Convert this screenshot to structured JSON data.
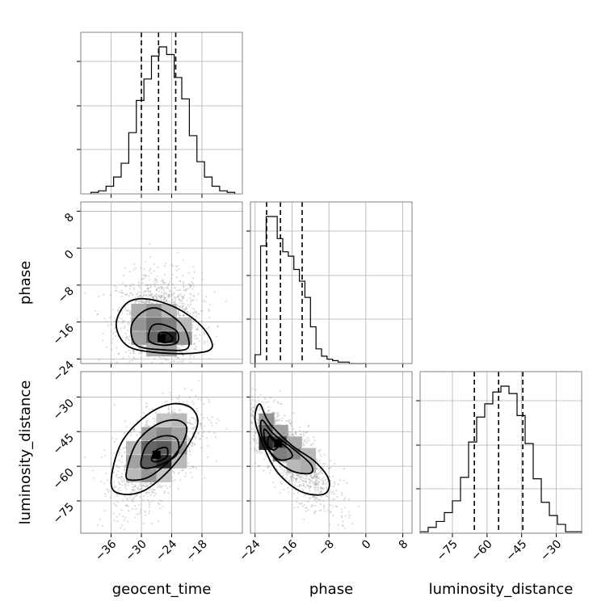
{
  "chart_data": {
    "type": "corner",
    "parameters": [
      "geocent_time",
      "phase",
      "luminosity_distance"
    ],
    "axis_titles": {
      "x": [
        "geocent_time",
        "phase",
        "luminosity_distance"
      ],
      "y": [
        "",
        "phase",
        "luminosity_distance"
      ]
    },
    "ranges": {
      "geocent_time": [
        -42,
        -10
      ],
      "phase": [
        -25,
        10
      ],
      "luminosity_distance": [
        -89,
        -19
      ]
    },
    "ticks": {
      "geocent_time": [
        -36,
        -30,
        -24,
        -18
      ],
      "phase": [
        -24,
        -16,
        -8,
        0,
        8
      ],
      "luminosity_distance": [
        -75,
        -60,
        -45,
        -30
      ]
    },
    "tick_labels": {
      "geocent_time": [
        "−36",
        "−30",
        "−24",
        "−18"
      ],
      "phase": [
        "−24",
        "−16",
        "−8",
        "0",
        "8"
      ],
      "luminosity_distance": [
        "−75",
        "−60",
        "−45",
        "−30"
      ]
    },
    "quantiles_dashed": {
      "geocent_time": [
        -30.0,
        -26.6,
        -23.2
      ],
      "phase": [
        -21.5,
        -18.5,
        -13.8
      ],
      "luminosity_distance": [
        -65.5,
        -55.0,
        -44.5
      ]
    },
    "histograms": {
      "geocent_time": {
        "bin_edges": [
          -40.0,
          -38.5,
          -37.0,
          -35.5,
          -34.0,
          -32.5,
          -31.0,
          -29.5,
          -28.0,
          -26.5,
          -25.0,
          -23.5,
          -22.0,
          -20.5,
          -19.0,
          -17.5,
          -16.0,
          -14.5,
          -13.0,
          -11.5
        ],
        "counts": [
          1,
          2,
          5,
          11,
          20,
          40,
          61,
          75,
          90,
          96,
          91,
          76,
          62,
          38,
          21,
          11,
          5,
          2,
          1
        ]
      },
      "phase": {
        "bin_edges": [
          -24.0,
          -22.8,
          -21.6,
          -20.4,
          -19.2,
          -18.0,
          -16.8,
          -15.6,
          -14.4,
          -13.2,
          -12.0,
          -10.8,
          -9.6,
          -8.4,
          -7.2,
          -6.0,
          -4.8,
          -3.6,
          -2.4,
          -1.2,
          0.0
        ],
        "counts": [
          6,
          80,
          100,
          100,
          85,
          76,
          73,
          64,
          56,
          45,
          25,
          10,
          5,
          3,
          2,
          1,
          1,
          0,
          0,
          0
        ]
      },
      "luminosity_distance": {
        "bin_edges": [
          -89.0,
          -85.5,
          -82.0,
          -78.5,
          -75.0,
          -71.5,
          -68.0,
          -64.5,
          -61.0,
          -57.5,
          -54.0,
          -50.5,
          -47.0,
          -43.5,
          -40.0,
          -36.5,
          -33.0,
          -29.5,
          -26.0,
          -22.5,
          -19.0
        ],
        "counts": [
          1,
          4,
          8,
          14,
          22,
          38,
          62,
          79,
          88,
          96,
          100,
          95,
          80,
          61,
          37,
          21,
          12,
          6,
          1,
          1
        ]
      }
    },
    "contours": {
      "phase_vs_geocent_time": {
        "center": [
          -26,
          -19.5
        ],
        "levels": [
          [
            [
              -33,
              -12
            ],
            [
              -29,
              -11
            ],
            [
              -23,
              -13
            ],
            [
              -18,
              -17
            ],
            [
              -16,
              -21.5
            ],
            [
              -20,
              -22.8
            ],
            [
              -28,
              -22.5
            ],
            [
              -33,
              -21
            ],
            [
              -35,
              -16.5
            ]
          ],
          [
            [
              -30,
              -14
            ],
            [
              -27,
              -13
            ],
            [
              -23,
              -15.5
            ],
            [
              -21,
              -18.5
            ],
            [
              -21,
              -21.8
            ],
            [
              -26,
              -22
            ],
            [
              -31,
              -21
            ],
            [
              -32,
              -17
            ]
          ],
          [
            [
              -28,
              -17
            ],
            [
              -26,
              -16.5
            ],
            [
              -23,
              -18
            ],
            [
              -23,
              -20.5
            ],
            [
              -26,
              -21
            ],
            [
              -28.5,
              -20
            ]
          ],
          [
            [
              -26.5,
              -18.5
            ],
            [
              -25,
              -18.3
            ],
            [
              -23.8,
              -19.5
            ],
            [
              -24.5,
              -20.3
            ],
            [
              -26,
              -20.3
            ]
          ]
        ],
        "density_cells": [
          {
            "x": -30.5,
            "y": -13.5,
            "w": 0.35
          },
          {
            "x": -27.5,
            "y": -13.5,
            "w": 0.45
          },
          {
            "x": -24.5,
            "y": -13.5,
            "w": 0.3
          },
          {
            "x": -30.5,
            "y": -16.5,
            "w": 0.45
          },
          {
            "x": -27.5,
            "y": -16.5,
            "w": 0.6
          },
          {
            "x": -24.5,
            "y": -16.5,
            "w": 0.55
          },
          {
            "x": -21.5,
            "y": -16.5,
            "w": 0.3
          },
          {
            "x": -30.5,
            "y": -19.5,
            "w": 0.4
          },
          {
            "x": -27.5,
            "y": -19.5,
            "w": 0.65
          },
          {
            "x": -24.5,
            "y": -19.5,
            "w": 0.95
          },
          {
            "x": -21.5,
            "y": -19.5,
            "w": 0.45
          },
          {
            "x": -27.5,
            "y": -22,
            "w": 0.35
          },
          {
            "x": -24.5,
            "y": -22,
            "w": 0.4
          }
        ]
      },
      "luminosity_distance_vs_geocent_time": {
        "center": [
          -27,
          -55
        ],
        "levels": [
          [
            [
              -36,
              -67
            ],
            [
              -34,
              -50
            ],
            [
              -29,
              -38
            ],
            [
              -24,
              -33
            ],
            [
              -20,
              -35
            ],
            [
              -19,
              -43
            ],
            [
              -23,
              -58
            ],
            [
              -29,
              -70
            ],
            [
              -34,
              -72
            ]
          ],
          [
            [
              -33,
              -63
            ],
            [
              -31,
              -50
            ],
            [
              -27,
              -42
            ],
            [
              -23,
              -40
            ],
            [
              -21,
              -44
            ],
            [
              -23,
              -54
            ],
            [
              -28,
              -64
            ],
            [
              -32,
              -66
            ]
          ],
          [
            [
              -30,
              -60
            ],
            [
              -29,
              -51
            ],
            [
              -26,
              -47
            ],
            [
              -23,
              -48
            ],
            [
              -23,
              -55
            ],
            [
              -27,
              -60
            ]
          ],
          [
            [
              -28,
              -57
            ],
            [
              -27,
              -53
            ],
            [
              -25,
              -52
            ],
            [
              -25,
              -56
            ],
            [
              -27,
              -58
            ]
          ]
        ],
        "density_cells": [
          {
            "x": -31.5,
            "y": -64,
            "w": 0.3
          },
          {
            "x": -28.5,
            "y": -64,
            "w": 0.45
          },
          {
            "x": -25.5,
            "y": -64,
            "w": 0.25
          },
          {
            "x": -31.5,
            "y": -58,
            "w": 0.4
          },
          {
            "x": -28.5,
            "y": -58,
            "w": 0.7
          },
          {
            "x": -25.5,
            "y": -58,
            "w": 0.9
          },
          {
            "x": -22.5,
            "y": -58,
            "w": 0.3
          },
          {
            "x": -31.5,
            "y": -52,
            "w": 0.3
          },
          {
            "x": -28.5,
            "y": -52,
            "w": 0.65
          },
          {
            "x": -25.5,
            "y": -52,
            "w": 0.7
          },
          {
            "x": -22.5,
            "y": -52,
            "w": 0.45
          },
          {
            "x": -28.5,
            "y": -46,
            "w": 0.4
          },
          {
            "x": -25.5,
            "y": -46,
            "w": 0.5
          },
          {
            "x": -22.5,
            "y": -46,
            "w": 0.4
          },
          {
            "x": -25.5,
            "y": -40,
            "w": 0.25
          },
          {
            "x": -22.5,
            "y": -40,
            "w": 0.3
          }
        ]
      },
      "luminosity_distance_vs_phase": {
        "center": [
          -19,
          -50
        ],
        "levels": [
          [
            [
              -23,
              -33
            ],
            [
              -21,
              -41
            ],
            [
              -16,
              -51
            ],
            [
              -11,
              -58
            ],
            [
              -8,
              -66
            ],
            [
              -9,
              -72
            ],
            [
              -14,
              -71
            ],
            [
              -19,
              -63
            ],
            [
              -22,
              -52
            ],
            [
              -24,
              -40
            ]
          ],
          [
            [
              -22.5,
              -40
            ],
            [
              -20,
              -46
            ],
            [
              -16,
              -52
            ],
            [
              -12,
              -59
            ],
            [
              -12,
              -63
            ],
            [
              -16,
              -62
            ],
            [
              -20,
              -56
            ],
            [
              -22.5,
              -47
            ]
          ],
          [
            [
              -22,
              -44
            ],
            [
              -20,
              -48
            ],
            [
              -17,
              -52
            ],
            [
              -16,
              -56
            ],
            [
              -19,
              -57
            ],
            [
              -21.5,
              -51
            ]
          ],
          [
            [
              -21,
              -47
            ],
            [
              -20,
              -49
            ],
            [
              -19,
              -51
            ],
            [
              -20,
              -53
            ],
            [
              -21.2,
              -51
            ]
          ]
        ],
        "density_cells": [
          {
            "x": -21.5,
            "y": -40,
            "w": 0.45
          },
          {
            "x": -21.5,
            "y": -45,
            "w": 0.65
          },
          {
            "x": -18.5,
            "y": -45,
            "w": 0.4
          },
          {
            "x": -21.5,
            "y": -50,
            "w": 0.9
          },
          {
            "x": -18.5,
            "y": -50,
            "w": 0.75
          },
          {
            "x": -15.5,
            "y": -50,
            "w": 0.35
          },
          {
            "x": -18.5,
            "y": -55,
            "w": 0.55
          },
          {
            "x": -15.5,
            "y": -55,
            "w": 0.5
          },
          {
            "x": -12.5,
            "y": -55,
            "w": 0.3
          },
          {
            "x": -15.5,
            "y": -60,
            "w": 0.3
          },
          {
            "x": -12.5,
            "y": -60,
            "w": 0.35
          }
        ]
      }
    },
    "scatter": {
      "phase_vs_geocent_time": {
        "x_mean": -26.5,
        "x_sd": 4.2,
        "y_mean": -15.5,
        "y_sd": 5.0,
        "corr": 0.0,
        "n": 1300
      },
      "luminosity_distance_vs_geocent_time": {
        "x_mean": -27,
        "x_sd": 4.2,
        "y_mean": -55,
        "y_sd": 11.5,
        "corr": 0.55,
        "n": 1300
      },
      "luminosity_distance_vs_phase": {
        "x_mean": -16.5,
        "x_sd": 5.0,
        "y_mean": -55,
        "y_sd": 11.5,
        "corr": -0.78,
        "n": 1300
      }
    },
    "grid": true,
    "colors": {
      "line": "#000000",
      "grid": "#b0b0b0",
      "frame": "#808080",
      "scatter": "#9a9a9a"
    }
  }
}
